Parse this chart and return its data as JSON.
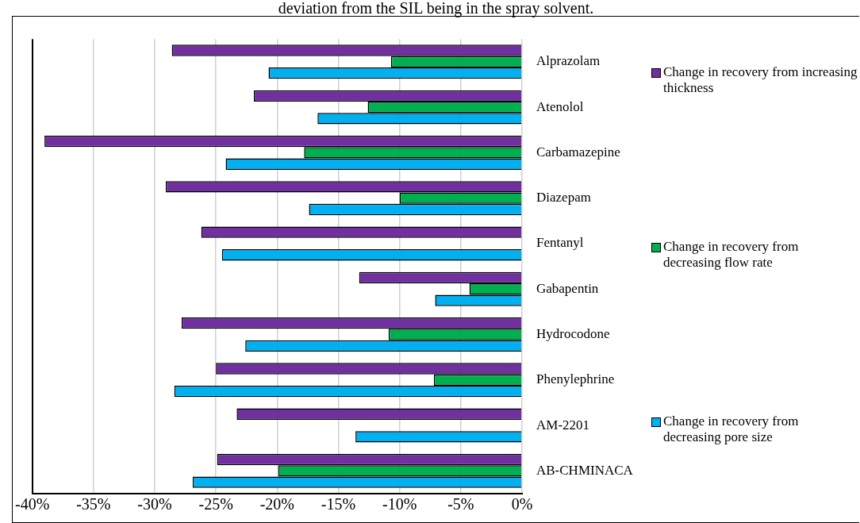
{
  "chart_data": {
    "type": "bar",
    "orientation": "horizontal",
    "title": "deviation from the SIL being in the spray solvent.",
    "categories": [
      "Alprazolam",
      "Atenolol",
      "Carbamazepine",
      "Diazepam",
      "Fentanyl",
      "Gabapentin",
      "Hydrocodone",
      "Phenylephrine",
      "AM-2201",
      "AB-CHMINACA"
    ],
    "series": [
      {
        "name": "Change in recovery from increasing thickness",
        "color": "#7030a0",
        "values": [
          -28.6,
          -21.9,
          -39.0,
          -29.1,
          -26.2,
          -13.3,
          -27.8,
          -25.0,
          -23.3,
          -24.9
        ]
      },
      {
        "name": "Change in recovery from decreasing flow rate",
        "color": "#00b050",
        "values": [
          -10.7,
          -12.6,
          -17.8,
          -10.0,
          null,
          -4.3,
          -10.9,
          -7.2,
          null,
          -19.9
        ]
      },
      {
        "name": "Change in recovery from decreasing pore size",
        "color": "#00b0f0",
        "values": [
          -20.7,
          -16.7,
          -24.2,
          -17.4,
          -24.5,
          -7.1,
          -22.6,
          -28.4,
          -13.6,
          -26.9
        ]
      }
    ],
    "xlim": [
      -40,
      0
    ],
    "xticks": [
      {
        "value": -40,
        "label": "-40%"
      },
      {
        "value": -35,
        "label": "-35%"
      },
      {
        "value": -30,
        "label": "-30%"
      },
      {
        "value": -25,
        "label": "-25%"
      },
      {
        "value": -20,
        "label": "-20%"
      },
      {
        "value": -15,
        "label": "-15%"
      },
      {
        "value": -10,
        "label": "-10%"
      },
      {
        "value": -5,
        "label": "-5%"
      },
      {
        "value": 0,
        "label": "0%"
      }
    ],
    "grid": "x",
    "legend": "right"
  }
}
